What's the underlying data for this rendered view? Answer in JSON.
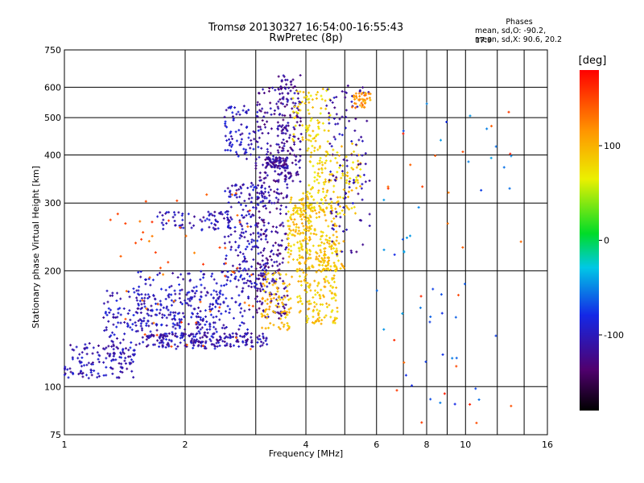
{
  "chart_data": {
    "type": "scatter",
    "title": "Tromsø 20130327 16:54:00-16:55:43",
    "subtitle": "RwPretec (8p)",
    "xlabel": "Frequency [MHz]",
    "ylabel": "Stationary phase Virtual Height [km]",
    "x_scale": "log",
    "y_scale": "log",
    "xlim": [
      1,
      16
    ],
    "ylim": [
      75,
      750
    ],
    "x_ticks": [
      1,
      2,
      4,
      6,
      8,
      10,
      16
    ],
    "y_ticks": [
      75,
      100,
      200,
      300,
      400,
      500,
      600,
      750
    ],
    "grid": true,
    "stats": {
      "heading": "Phases",
      "o_mode": "mean, sd,O: -90.2, 17.9",
      "x_mode": "mean, sd,X:  90.6, 20.2"
    },
    "colorbar": {
      "label": "[deg]",
      "range": [
        -180,
        180
      ],
      "ticks": [
        100,
        0,
        -100
      ],
      "colormap": "rainbow (black-purple-blue-cyan-green-yellow-orange-red)"
    },
    "point_groups": [
      {
        "x0": 1.0,
        "x1": 1.5,
        "y0": 105,
        "y1": 130,
        "phase": -105,
        "n": 130
      },
      {
        "x0": 1.25,
        "x1": 2.5,
        "y0": 125,
        "y1": 180,
        "phase": -100,
        "n": 260
      },
      {
        "x0": 1.6,
        "x1": 3.2,
        "y0": 127,
        "y1": 138,
        "phase": -108,
        "n": 180
      },
      {
        "x0": 1.5,
        "x1": 3.0,
        "y0": 140,
        "y1": 200,
        "phase": -100,
        "n": 180
      },
      {
        "x0": 1.7,
        "x1": 2.6,
        "y0": 255,
        "y1": 285,
        "phase": -105,
        "n": 70
      },
      {
        "x0": 2.5,
        "x1": 3.2,
        "y0": 180,
        "y1": 340,
        "phase": -102,
        "n": 200
      },
      {
        "x0": 2.5,
        "x1": 3.1,
        "y0": 390,
        "y1": 540,
        "phase": -100,
        "n": 80
      },
      {
        "x0": 3.0,
        "x1": 3.6,
        "y0": 150,
        "y1": 600,
        "phase": -118,
        "n": 300
      },
      {
        "x0": 3.4,
        "x1": 3.9,
        "y0": 340,
        "y1": 650,
        "phase": -118,
        "n": 140
      },
      {
        "x0": 3.2,
        "x1": 3.6,
        "y0": 370,
        "y1": 395,
        "phase": -115,
        "n": 60
      },
      {
        "x0": 3.1,
        "x1": 3.7,
        "y0": 140,
        "y1": 200,
        "phase": 95,
        "n": 90
      },
      {
        "x0": 3.6,
        "x1": 4.1,
        "y0": 210,
        "y1": 320,
        "phase": 90,
        "n": 100
      },
      {
        "x0": 3.8,
        "x1": 4.8,
        "y0": 145,
        "y1": 300,
        "phase": 90,
        "n": 280
      },
      {
        "x0": 4.0,
        "x1": 5.5,
        "y0": 280,
        "y1": 430,
        "phase": 85,
        "n": 150
      },
      {
        "x0": 4.3,
        "x1": 5.0,
        "y0": 200,
        "y1": 240,
        "phase": 92,
        "n": 60
      },
      {
        "x0": 3.7,
        "x1": 4.6,
        "y0": 430,
        "y1": 600,
        "phase": 80,
        "n": 80
      },
      {
        "x0": 4.5,
        "x1": 5.8,
        "y0": 220,
        "y1": 620,
        "phase": -110,
        "n": 110
      },
      {
        "x0": 5.2,
        "x1": 5.8,
        "y0": 530,
        "y1": 580,
        "phase": 115,
        "n": 40
      },
      {
        "x0": 1.3,
        "x1": 3.0,
        "y0": 125,
        "y1": 320,
        "phase": 140,
        "n": 60
      },
      {
        "x0": 6.0,
        "x1": 13.0,
        "y0": 85,
        "y1": 560,
        "phase": -60,
        "n": 45
      },
      {
        "x0": 6.2,
        "x1": 14.0,
        "y0": 80,
        "y1": 520,
        "phase": 150,
        "n": 25
      }
    ]
  }
}
